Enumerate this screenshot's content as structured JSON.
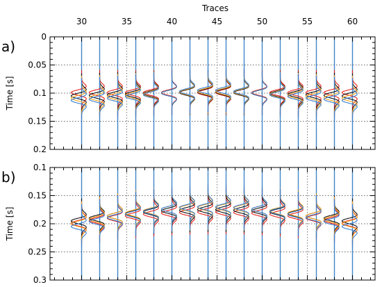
{
  "chart_data": {
    "type": "line",
    "x_axis": {
      "label": "Traces",
      "range": [
        26.5,
        62.5
      ],
      "tick_labels": [
        "30",
        "35",
        "40",
        "45",
        "50",
        "55",
        "60"
      ],
      "traces": [
        30,
        32,
        34,
        36,
        38,
        40,
        42,
        44,
        46,
        48,
        50,
        52,
        54,
        56,
        58,
        60
      ]
    },
    "colors": {
      "trace_line": "#3f87c9",
      "red": "#e8221c",
      "black": "#111111",
      "orange": "#f5a623",
      "blue": "#3a7fd0"
    },
    "panels": [
      {
        "id": "a",
        "label": "a)",
        "ylabel": "Time [s]",
        "ylim": [
          0,
          0.2
        ],
        "y_ticks": [
          0,
          0.05,
          0.1,
          0.15,
          0.2
        ],
        "y_tick_labels": [
          "0",
          "0.05",
          "0.1",
          "0.15",
          "0.2"
        ],
        "series": [
          {
            "color": "red",
            "peak_times": [
              0.099,
              0.099,
              0.099,
              0.099,
              0.099,
              0.099,
              0.099,
              0.099,
              0.099,
              0.099,
              0.099,
              0.099,
              0.099,
              0.099,
              0.099,
              0.099
            ]
          },
          {
            "color": "black",
            "peak_times": [
              0.105,
              0.104,
              0.103,
              0.102,
              0.101,
              0.1,
              0.099,
              0.098,
              0.098,
              0.099,
              0.1,
              0.101,
              0.102,
              0.103,
              0.104,
              0.105
            ]
          },
          {
            "color": "orange",
            "peak_times": [
              0.109,
              0.108,
              0.106,
              0.104,
              0.102,
              0.1,
              0.098,
              0.097,
              0.097,
              0.098,
              0.1,
              0.102,
              0.104,
              0.106,
              0.108,
              0.109
            ]
          },
          {
            "color": "blue",
            "peak_times": [
              0.113,
              0.111,
              0.109,
              0.106,
              0.103,
              0.1,
              0.097,
              0.095,
              0.095,
              0.097,
              0.1,
              0.103,
              0.106,
              0.109,
              0.111,
              0.113
            ]
          }
        ]
      },
      {
        "id": "b",
        "label": "b)",
        "ylabel": "Time [s]",
        "ylim": [
          0.1,
          0.3
        ],
        "y_ticks": [
          0.1,
          0.15,
          0.2,
          0.25,
          0.3
        ],
        "y_tick_labels": [
          "0.1",
          "0.15",
          "0.2",
          "0.25",
          "0.3"
        ],
        "series": [
          {
            "color": "red",
            "peak_times": [
              0.199,
              0.194,
              0.19,
              0.186,
              0.183,
              0.181,
              0.18,
              0.179,
              0.179,
              0.18,
              0.181,
              0.183,
              0.186,
              0.19,
              0.194,
              0.199
            ]
          },
          {
            "color": "black",
            "peak_times": [
              0.195,
              0.19,
              0.186,
              0.182,
              0.179,
              0.177,
              0.176,
              0.175,
              0.175,
              0.176,
              0.177,
              0.179,
              0.182,
              0.186,
              0.19,
              0.195
            ]
          },
          {
            "color": "orange",
            "peak_times": [
              0.2,
              0.192,
              0.186,
              0.181,
              0.177,
              0.174,
              0.172,
              0.171,
              0.171,
              0.172,
              0.174,
              0.177,
              0.181,
              0.186,
              0.192,
              0.2
            ]
          },
          {
            "color": "blue",
            "peak_times": [
              0.205,
              0.196,
              0.189,
              0.183,
              0.178,
              0.174,
              0.171,
              0.17,
              0.17,
              0.171,
              0.174,
              0.178,
              0.183,
              0.189,
              0.196,
              0.205
            ]
          }
        ]
      }
    ]
  }
}
